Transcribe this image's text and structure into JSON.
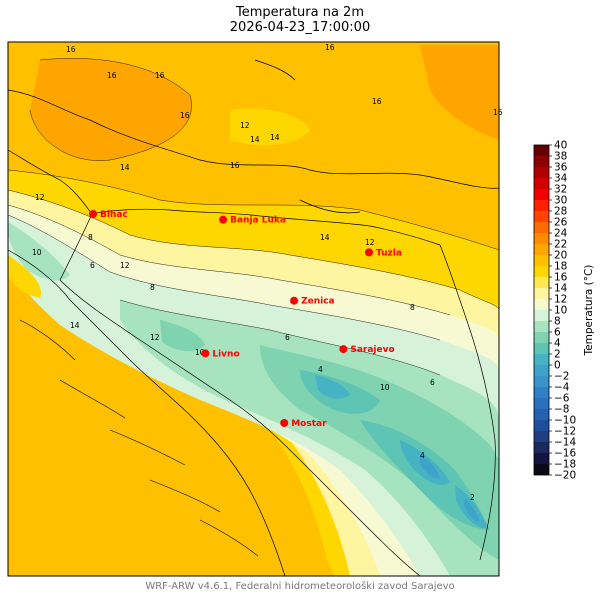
{
  "title": "Temperatura na 2m",
  "subtitle": "2026-04-23_17:00:00",
  "footer": "WRF-ARW v4.6.1, Federalni hidrometeorološki zavod Sarajevo",
  "colorbar": {
    "label": "Temperatura (°C)",
    "min": -20,
    "max": 40,
    "step": 2,
    "ticks": [
      40,
      38,
      36,
      34,
      32,
      30,
      28,
      26,
      24,
      22,
      20,
      18,
      16,
      14,
      12,
      10,
      8,
      6,
      4,
      2,
      0,
      -2,
      -4,
      -6,
      -8,
      -10,
      -12,
      -14,
      -16,
      -18,
      -20
    ],
    "colors": {
      "-20": "#0a0a14",
      "-18": "#14143c",
      "-16": "#1a2a5c",
      "-14": "#1f3f82",
      "-12": "#1f4f9c",
      "-10": "#2660b0",
      "-8": "#2b70c0",
      "-6": "#2f80c8",
      "-4": "#3a93cc",
      "-2": "#3fa3c9",
      "0": "#46b3c4",
      "2": "#5ec4b4",
      "4": "#7fd3b0",
      "6": "#a8e3c0",
      "8": "#d6f2d8",
      "10": "#f6f9d2",
      "12": "#fff4a0",
      "14": "#ffe850",
      "16": "#ffd700",
      "18": "#ffc000",
      "20": "#ffa500",
      "22": "#ff8c00",
      "24": "#ff6a00",
      "26": "#ff4500",
      "28": "#ff2000",
      "30": "#f00000",
      "32": "#d40000",
      "34": "#b00000",
      "36": "#8c0000",
      "38": "#640000"
    }
  },
  "cities": [
    {
      "name": "Bihać",
      "lat": 44.81,
      "lon": 15.87
    },
    {
      "name": "Banja Luka",
      "lat": 44.77,
      "lon": 17.19
    },
    {
      "name": "Tuzla",
      "lat": 44.54,
      "lon": 18.67
    },
    {
      "name": "Zenica",
      "lat": 44.2,
      "lon": 17.91
    },
    {
      "name": "Sarajevo",
      "lat": 43.86,
      "lon": 18.41
    },
    {
      "name": "Livno",
      "lat": 43.83,
      "lon": 17.01
    },
    {
      "name": "Mostar",
      "lat": 43.34,
      "lon": 17.81
    }
  ],
  "contour_labels": [
    "16",
    "16",
    "16",
    "16",
    "16",
    "16",
    "16",
    "16",
    "14",
    "14",
    "14",
    "14",
    "14",
    "12",
    "12",
    "12",
    "12",
    "12",
    "10",
    "10",
    "10",
    "8",
    "8",
    "8",
    "6",
    "6",
    "6",
    "4",
    "4",
    "2"
  ],
  "city_color": "#ff0000"
}
